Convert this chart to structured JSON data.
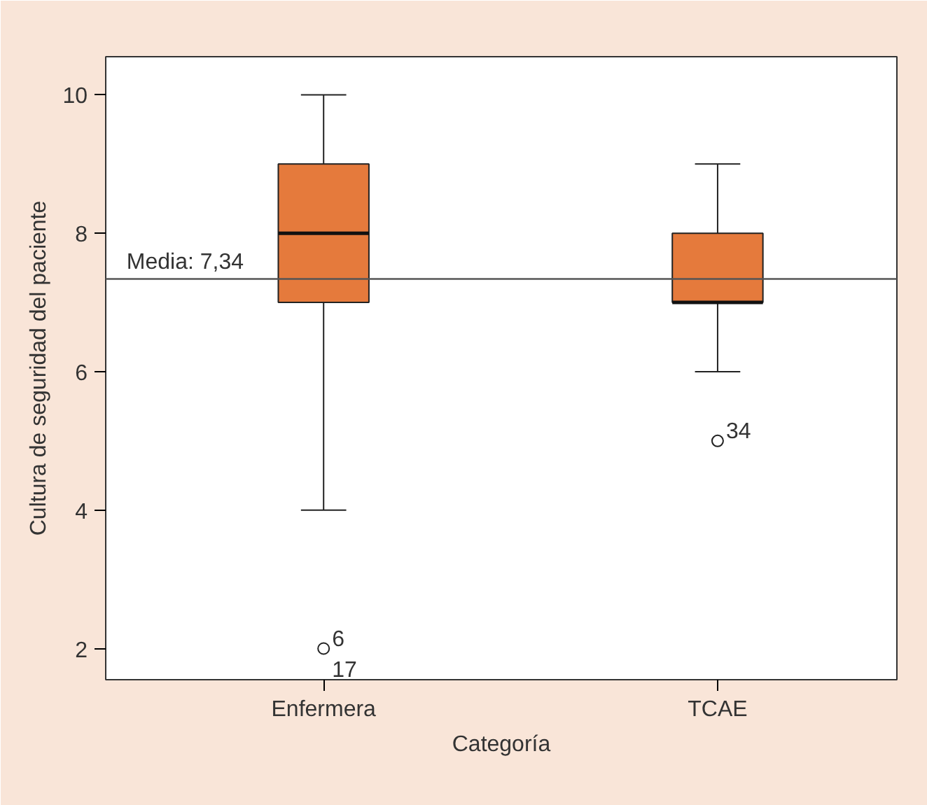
{
  "chart_data": {
    "type": "box",
    "xlabel": "Categoría",
    "ylabel": "Cultura de seguridad del paciente",
    "categories": [
      "Enfermera",
      "TCAE"
    ],
    "boxes": [
      {
        "low": 4,
        "q1": 7,
        "median": 8,
        "q3": 9,
        "high": 10
      },
      {
        "low": 6,
        "q1": 7,
        "median": 7,
        "q3": 8,
        "high": 9
      }
    ],
    "series": [
      {
        "type": "scatter",
        "x": [
          "Enfermera",
          "TCAE"
        ],
        "values": [
          2,
          5
        ],
        "color": "#ffffff"
      }
    ],
    "marker": "circle",
    "color": "#e57a3c",
    "ylim": [
      1.55,
      10.55
    ],
    "yticks": [
      2,
      4,
      6,
      8,
      10
    ],
    "ref_lines": [
      {
        "axis": "y",
        "value": 7.34,
        "label": "Media: 7,34",
        "color": "#555555"
      }
    ],
    "annotations": [
      {
        "text": "6",
        "x": "Enfermera",
        "y": 2
      },
      {
        "text": "17",
        "x": "Enfermera",
        "y": 2
      },
      {
        "text": "34",
        "x": "TCAE",
        "y": 5
      }
    ],
    "grid": false
  }
}
